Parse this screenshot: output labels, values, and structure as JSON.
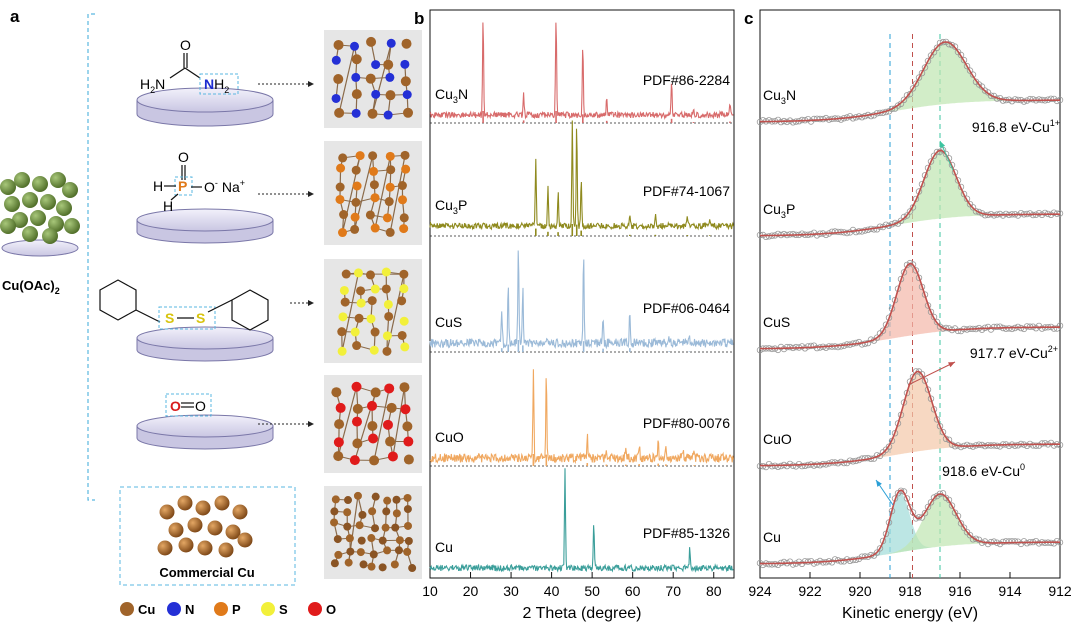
{
  "panels": {
    "a": {
      "label": "a"
    },
    "b": {
      "label": "b"
    },
    "c": {
      "label": "c"
    }
  },
  "scheme": {
    "precursor_label": "Cu(OAc)",
    "precursor_sub": "2",
    "commercial_label": "Commercial Cu",
    "reagents": {
      "urea": {
        "o": "O",
        "h2n_left": "H",
        "h2n_left_sub": "2",
        "n_left": "N",
        "n_right": "N",
        "h2_right": "H",
        "h2_right_sub": "2"
      },
      "hypophosphite": {
        "o": "O",
        "h_top": "H",
        "h_bottom": "H",
        "p": "P",
        "o_minus": "O",
        "minus": "-",
        "na": "Na",
        "plus": "+"
      },
      "disulfide": {
        "s1": "S",
        "s2": "S"
      },
      "oxygen": {
        "o1": "O",
        "o2": "O"
      }
    },
    "legend": [
      {
        "label": "Cu",
        "color": "#a0642a"
      },
      {
        "label": "N",
        "color": "#2430d6"
      },
      {
        "label": "P",
        "color": "#e07a1a"
      },
      {
        "label": "S",
        "color": "#f2f03a"
      },
      {
        "label": "O",
        "color": "#e01b1b"
      }
    ]
  },
  "chart_data": [
    {
      "type": "line",
      "panel": "b",
      "xlabel": "2 Theta (degree)",
      "xlim": [
        10,
        85
      ],
      "x_ticks": [
        10,
        20,
        30,
        40,
        50,
        60,
        70,
        80
      ],
      "series": [
        {
          "name": "Cu3N",
          "label_main": "Cu",
          "label_sub": "3",
          "label_tail": "N",
          "reference": "PDF#86-2284",
          "color": "#d86b6b",
          "peaks": [
            [
              23.1,
              1.0
            ],
            [
              33.1,
              0.22
            ],
            [
              41.1,
              1.0
            ],
            [
              47.7,
              0.72
            ],
            [
              53.6,
              0.18
            ],
            [
              69.6,
              0.35
            ],
            [
              75.0,
              0.08
            ],
            [
              84.0,
              0.12
            ]
          ]
        },
        {
          "name": "Cu3P",
          "label_main": "Cu",
          "label_sub": "3",
          "label_tail": "P",
          "reference": "PDF#74-1067",
          "color": "#8f8a1e",
          "peaks": [
            [
              36.1,
              0.62
            ],
            [
              39.1,
              0.35
            ],
            [
              41.6,
              0.32
            ],
            [
              45.1,
              1.0
            ],
            [
              46.2,
              0.95
            ],
            [
              47.3,
              0.45
            ],
            [
              59.3,
              0.1
            ],
            [
              65.6,
              0.1
            ],
            [
              73.5,
              0.08
            ],
            [
              79.0,
              0.06
            ]
          ]
        },
        {
          "name": "CuS",
          "label_main": "CuS",
          "label_sub": "",
          "label_tail": "",
          "reference": "PDF#06-0464",
          "color": "#9bbad8",
          "peaks": [
            [
              27.7,
              0.32
            ],
            [
              29.3,
              0.62
            ],
            [
              31.8,
              1.0
            ],
            [
              32.9,
              0.55
            ],
            [
              47.9,
              0.9
            ],
            [
              52.7,
              0.28
            ],
            [
              59.3,
              0.32
            ],
            [
              69.0,
              0.06
            ],
            [
              74.0,
              0.05
            ]
          ]
        },
        {
          "name": "CuO",
          "label_main": "CuO",
          "label_sub": "",
          "label_tail": "",
          "reference": "PDF#80-0076",
          "color": "#f0a860",
          "peaks": [
            [
              35.5,
              1.0
            ],
            [
              38.7,
              0.95
            ],
            [
              48.8,
              0.25
            ],
            [
              53.5,
              0.12
            ],
            [
              58.3,
              0.12
            ],
            [
              61.6,
              0.16
            ],
            [
              66.3,
              0.2
            ],
            [
              68.2,
              0.14
            ],
            [
              72.5,
              0.06
            ],
            [
              75.2,
              0.08
            ]
          ]
        },
        {
          "name": "Cu",
          "label_main": "Cu",
          "label_sub": "",
          "label_tail": "",
          "reference": "PDF#85-1326",
          "color": "#3a9e9a",
          "peaks": [
            [
              43.3,
              1.0
            ],
            [
              50.4,
              0.45
            ],
            [
              74.1,
              0.2
            ]
          ]
        }
      ]
    },
    {
      "type": "line",
      "panel": "c",
      "xlabel": "Kinetic energy (eV)",
      "xlim": [
        924,
        912
      ],
      "x_ticks": [
        924,
        922,
        920,
        918,
        916,
        914,
        912
      ],
      "reference_lines_ev": [
        918.8,
        917.9,
        916.8
      ],
      "series": [
        {
          "name": "Cu3N",
          "label_main": "Cu",
          "label_sub": "3",
          "label_tail": "N",
          "peaks": [
            [
              916.6,
              1.0,
              1.2
            ]
          ]
        },
        {
          "name": "Cu3P",
          "label_main": "Cu",
          "label_sub": "3",
          "label_tail": "P",
          "peaks": [
            [
              916.8,
              1.0,
              0.9
            ]
          ]
        },
        {
          "name": "CuS",
          "label_main": "CuS",
          "label_sub": "",
          "label_tail": "",
          "peaks": [
            [
              918.0,
              1.0,
              0.75
            ]
          ]
        },
        {
          "name": "CuO",
          "label_main": "CuO",
          "label_sub": "",
          "label_tail": "",
          "peaks": [
            [
              917.7,
              1.0,
              0.8
            ]
          ]
        },
        {
          "name": "Cu",
          "label_main": "Cu",
          "label_sub": "",
          "label_tail": "",
          "peaks": [
            [
              918.4,
              0.85,
              0.55
            ],
            [
              916.8,
              0.75,
              0.9
            ]
          ]
        }
      ],
      "annotations": [
        {
          "text": "916.8 eV-Cu",
          "sup": "1+"
        },
        {
          "text": "917.7 eV-Cu",
          "sup": "2+"
        },
        {
          "text": "918.6 eV-Cu",
          "sup": "0"
        }
      ]
    }
  ]
}
